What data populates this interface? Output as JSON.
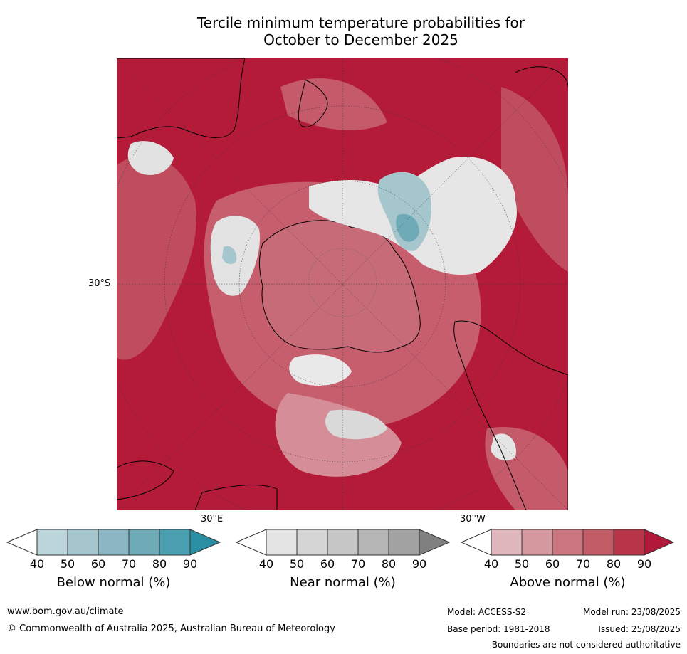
{
  "title": {
    "line1": "Tercile minimum temperature probabilities for",
    "line2": "October to December 2025"
  },
  "map": {
    "lat_label": "30°S",
    "lon_label_east": "30°E",
    "lon_label_west": "30°W"
  },
  "colorbars": [
    {
      "title": "Below normal (%)",
      "ticks": [
        "40",
        "50",
        "60",
        "70",
        "80",
        "90"
      ],
      "colors": [
        "#bdd6dc",
        "#a6c6cd",
        "#8ab7c3",
        "#6fabb7",
        "#4aa0b0",
        "#2b8fa3"
      ]
    },
    {
      "title": "Near normal (%)",
      "ticks": [
        "40",
        "50",
        "60",
        "70",
        "80",
        "90"
      ],
      "colors": [
        "#e4e4e4",
        "#d5d5d5",
        "#c6c6c6",
        "#b5b5b5",
        "#a2a2a2",
        "#808080"
      ]
    },
    {
      "title": "Above normal (%)",
      "ticks": [
        "40",
        "50",
        "60",
        "70",
        "80",
        "90"
      ],
      "colors": [
        "#e0b7bd",
        "#d6989f",
        "#cb7680",
        "#c25c67",
        "#b73449",
        "#b11a3a"
      ]
    }
  ],
  "footer": {
    "website": "www.bom.gov.au/climate",
    "copyright": "© Commonwealth of Australia 2025, Australian Bureau of Meteorology",
    "model": "Model: ACCESS-S2",
    "base_period": "Base period: 1981-2018",
    "model_run": "Model run: 23/08/2025",
    "issued": "Issued: 25/08/2025",
    "disclaimer": "Boundaries are not considered authoritative"
  }
}
